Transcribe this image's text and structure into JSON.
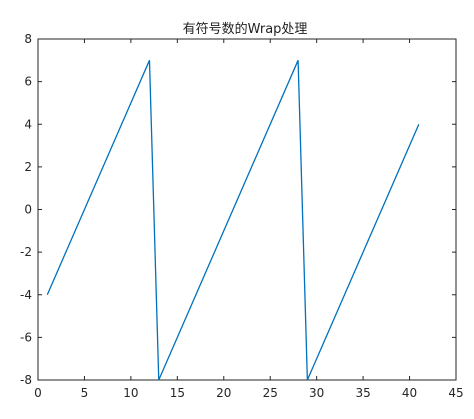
{
  "chart_data": {
    "type": "line",
    "title": "有符号数的Wrap处理",
    "xlabel": "",
    "ylabel": "",
    "xlim": [
      0,
      45
    ],
    "ylim": [
      -8,
      8
    ],
    "xticks": [
      0,
      5,
      10,
      15,
      20,
      25,
      30,
      35,
      40,
      45
    ],
    "yticks": [
      -8,
      -6,
      -4,
      -2,
      0,
      2,
      4,
      6,
      8
    ],
    "grid": false,
    "legend": "none",
    "series": [
      {
        "color": "#0072BD",
        "x": [
          1,
          12,
          13,
          28,
          29,
          41
        ],
        "y": [
          -4,
          7,
          -8,
          7,
          -8,
          4
        ]
      }
    ]
  }
}
